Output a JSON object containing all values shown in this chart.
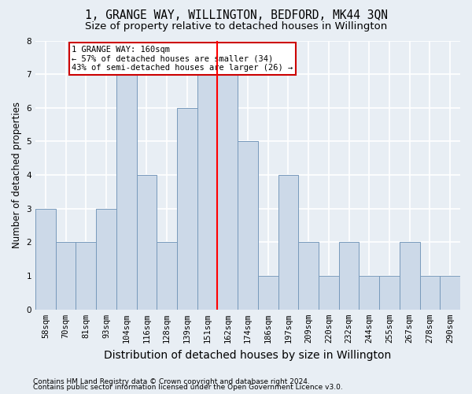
{
  "title": "1, GRANGE WAY, WILLINGTON, BEDFORD, MK44 3QN",
  "subtitle": "Size of property relative to detached houses in Willington",
  "xlabel": "Distribution of detached houses by size in Willington",
  "ylabel": "Number of detached properties",
  "categories": [
    "58sqm",
    "70sqm",
    "81sqm",
    "93sqm",
    "104sqm",
    "116sqm",
    "128sqm",
    "139sqm",
    "151sqm",
    "162sqm",
    "174sqm",
    "186sqm",
    "197sqm",
    "209sqm",
    "220sqm",
    "232sqm",
    "244sqm",
    "255sqm",
    "267sqm",
    "278sqm",
    "290sqm"
  ],
  "values": [
    3,
    2,
    2,
    3,
    7,
    4,
    2,
    6,
    7,
    7,
    5,
    1,
    4,
    2,
    1,
    2,
    1,
    1,
    2,
    1,
    1
  ],
  "bar_color": "#ccd9e8",
  "bar_edge_color": "#7799bb",
  "red_line_index": 9.0,
  "annotation_text": "1 GRANGE WAY: 160sqm\n← 57% of detached houses are smaller (34)\n43% of semi-detached houses are larger (26) →",
  "annotation_box_color": "#ffffff",
  "annotation_box_edge_color": "#cc0000",
  "ylim": [
    0,
    8
  ],
  "yticks": [
    0,
    1,
    2,
    3,
    4,
    5,
    6,
    7,
    8
  ],
  "footer_line1": "Contains HM Land Registry data © Crown copyright and database right 2024.",
  "footer_line2": "Contains public sector information licensed under the Open Government Licence v3.0.",
  "bg_color": "#e8eef4",
  "grid_color": "#ffffff",
  "title_fontsize": 10.5,
  "subtitle_fontsize": 9.5,
  "xlabel_fontsize": 10,
  "ylabel_fontsize": 8.5,
  "tick_fontsize": 7.5,
  "footer_fontsize": 6.5
}
